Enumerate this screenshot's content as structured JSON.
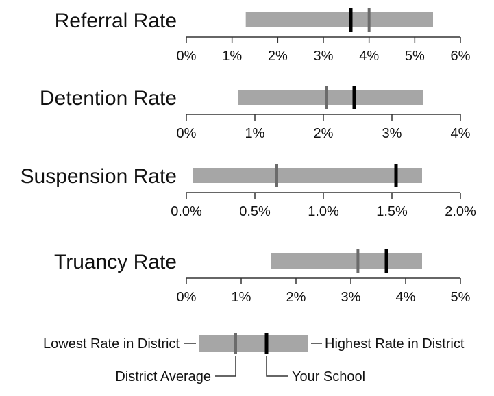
{
  "chart_data": [
    {
      "type": "range-bar",
      "title": "Referral Rate",
      "xlim": [
        0,
        6
      ],
      "ticks": [
        0,
        1,
        2,
        3,
        4,
        5,
        6
      ],
      "tick_labels": [
        "0%",
        "1%",
        "2%",
        "3%",
        "4%",
        "5%",
        "6%"
      ],
      "lowest": 1.3,
      "highest": 5.4,
      "district_average": 4.0,
      "your_school": 3.6
    },
    {
      "type": "range-bar",
      "title": "Detention Rate",
      "xlim": [
        0,
        4
      ],
      "ticks": [
        0,
        1,
        2,
        3,
        4
      ],
      "tick_labels": [
        "0%",
        "1%",
        "2%",
        "3%",
        "4%"
      ],
      "lowest": 0.75,
      "highest": 3.45,
      "district_average": 2.05,
      "your_school": 2.45
    },
    {
      "type": "range-bar",
      "title": "Suspension Rate",
      "xlim": [
        0,
        2
      ],
      "ticks": [
        0,
        0.5,
        1,
        1.5,
        2
      ],
      "tick_labels": [
        "0.0%",
        "0.5%",
        "1.0%",
        "1.5%",
        "2.0%"
      ],
      "lowest": 0.05,
      "highest": 1.72,
      "district_average": 0.66,
      "your_school": 1.53
    },
    {
      "type": "range-bar",
      "title": "Truancy Rate",
      "xlim": [
        0,
        5
      ],
      "ticks": [
        0,
        1,
        2,
        3,
        4,
        5
      ],
      "tick_labels": [
        "0%",
        "1%",
        "2%",
        "3%",
        "4%",
        "5%"
      ],
      "lowest": 1.55,
      "highest": 4.3,
      "district_average": 3.13,
      "your_school": 3.65
    }
  ],
  "legend": {
    "lowest": "Lowest Rate in District",
    "highest": "Highest Rate in District",
    "district_average": "District Average",
    "your_school": "Your School"
  },
  "colors": {
    "range_bar": "#a6a6a6",
    "district_average_marker": "#6b6b6b",
    "your_school_marker": "#000000",
    "axis": "#333333"
  }
}
